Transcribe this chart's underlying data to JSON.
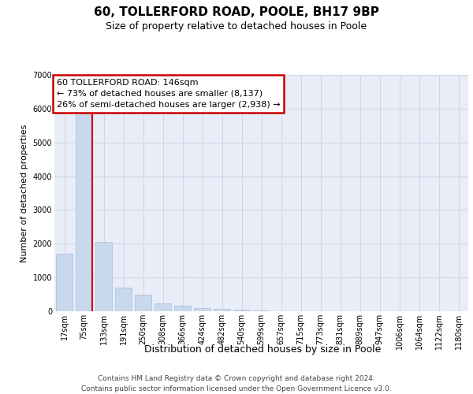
{
  "title1": "60, TOLLERFORD ROAD, POOLE, BH17 9BP",
  "title2": "Size of property relative to detached houses in Poole",
  "xlabel": "Distribution of detached houses by size in Poole",
  "ylabel": "Number of detached properties",
  "categories": [
    "17sqm",
    "75sqm",
    "133sqm",
    "191sqm",
    "250sqm",
    "308sqm",
    "366sqm",
    "424sqm",
    "482sqm",
    "540sqm",
    "599sqm",
    "657sqm",
    "715sqm",
    "773sqm",
    "831sqm",
    "889sqm",
    "947sqm",
    "1006sqm",
    "1064sqm",
    "1122sqm",
    "1180sqm"
  ],
  "values": [
    1700,
    5900,
    2050,
    700,
    490,
    230,
    170,
    95,
    75,
    50,
    30,
    0,
    0,
    0,
    0,
    0,
    0,
    0,
    0,
    0,
    0
  ],
  "bar_color": "#c8d8ed",
  "bar_edge_color": "#a8bedc",
  "vline_after_index": 1,
  "vline_color": "#cc0000",
  "annotation_text": "60 TOLLERFORD ROAD: 146sqm\n← 73% of detached houses are smaller (8,137)\n26% of semi-detached houses are larger (2,938) →",
  "annotation_box_facecolor": "#ffffff",
  "annotation_box_edgecolor": "#cc0000",
  "ylim_max": 7000,
  "yticks": [
    0,
    1000,
    2000,
    3000,
    4000,
    5000,
    6000,
    7000
  ],
  "grid_color": "#cdd5e5",
  "bg_color": "#e8edf7",
  "footer1": "Contains HM Land Registry data © Crown copyright and database right 2024.",
  "footer2": "Contains public sector information licensed under the Open Government Licence v3.0.",
  "title1_fontsize": 11,
  "title2_fontsize": 9,
  "ylabel_fontsize": 8,
  "xlabel_fontsize": 9,
  "tick_fontsize": 7,
  "footer_fontsize": 6.5,
  "annotation_fontsize": 8
}
